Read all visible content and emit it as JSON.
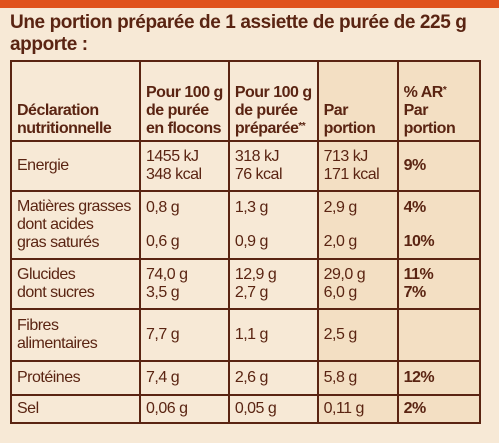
{
  "intro": "Une portion préparée de 1 assiette de purée de 225 g apporte :",
  "headers": {
    "col0": [
      "Déclaration",
      "nutritionnelle"
    ],
    "col1": [
      "Pour 100 g",
      "de purée",
      "en flocons"
    ],
    "col2": [
      "Pour 100 g",
      "de purée",
      "préparée"
    ],
    "col2_sup": "**",
    "col3": [
      "Par",
      "portion"
    ],
    "col4_line1": "% AR",
    "col4_sup": "*",
    "col4": [
      "Par",
      "portion"
    ]
  },
  "rows": [
    {
      "label": [
        "Energie"
      ],
      "v1": [
        "1455 kJ",
        "348 kcal"
      ],
      "v2": [
        "318 kJ",
        "76 kcal"
      ],
      "v3": [
        "713 kJ",
        "171 kcal"
      ],
      "v4": [
        "9%"
      ]
    },
    {
      "label": [
        "Matières grasses",
        "dont acides",
        "gras saturés"
      ],
      "v1": [
        "0,8 g",
        "0,6 g"
      ],
      "v2": [
        "1,3 g",
        "0,9 g"
      ],
      "v3": [
        "2,9 g",
        "2,0 g"
      ],
      "v4": [
        "4%",
        "10%"
      ]
    },
    {
      "label": [
        "Glucides",
        "dont sucres"
      ],
      "v1": [
        "74,0 g",
        "3,5 g"
      ],
      "v2": [
        "12,9 g",
        "2,7 g"
      ],
      "v3": [
        "29,0 g",
        "6,0 g"
      ],
      "v4": [
        "11%",
        "7%"
      ]
    },
    {
      "label": [
        "Fibres",
        "alimentaires"
      ],
      "v1": [
        "7,7 g"
      ],
      "v2": [
        "1,1 g"
      ],
      "v3": [
        "2,5 g"
      ],
      "v4": [
        ""
      ]
    },
    {
      "label": [
        "Protéines"
      ],
      "v1": [
        "7,4 g"
      ],
      "v2": [
        "2,6 g"
      ],
      "v3": [
        "5,8 g"
      ],
      "v4": [
        "12%"
      ]
    },
    {
      "label": [
        "Sel"
      ],
      "v1": [
        "0,06 g"
      ],
      "v2": [
        "0,05 g"
      ],
      "v3": [
        "0,11 g"
      ],
      "v4": [
        "2%"
      ]
    }
  ]
}
